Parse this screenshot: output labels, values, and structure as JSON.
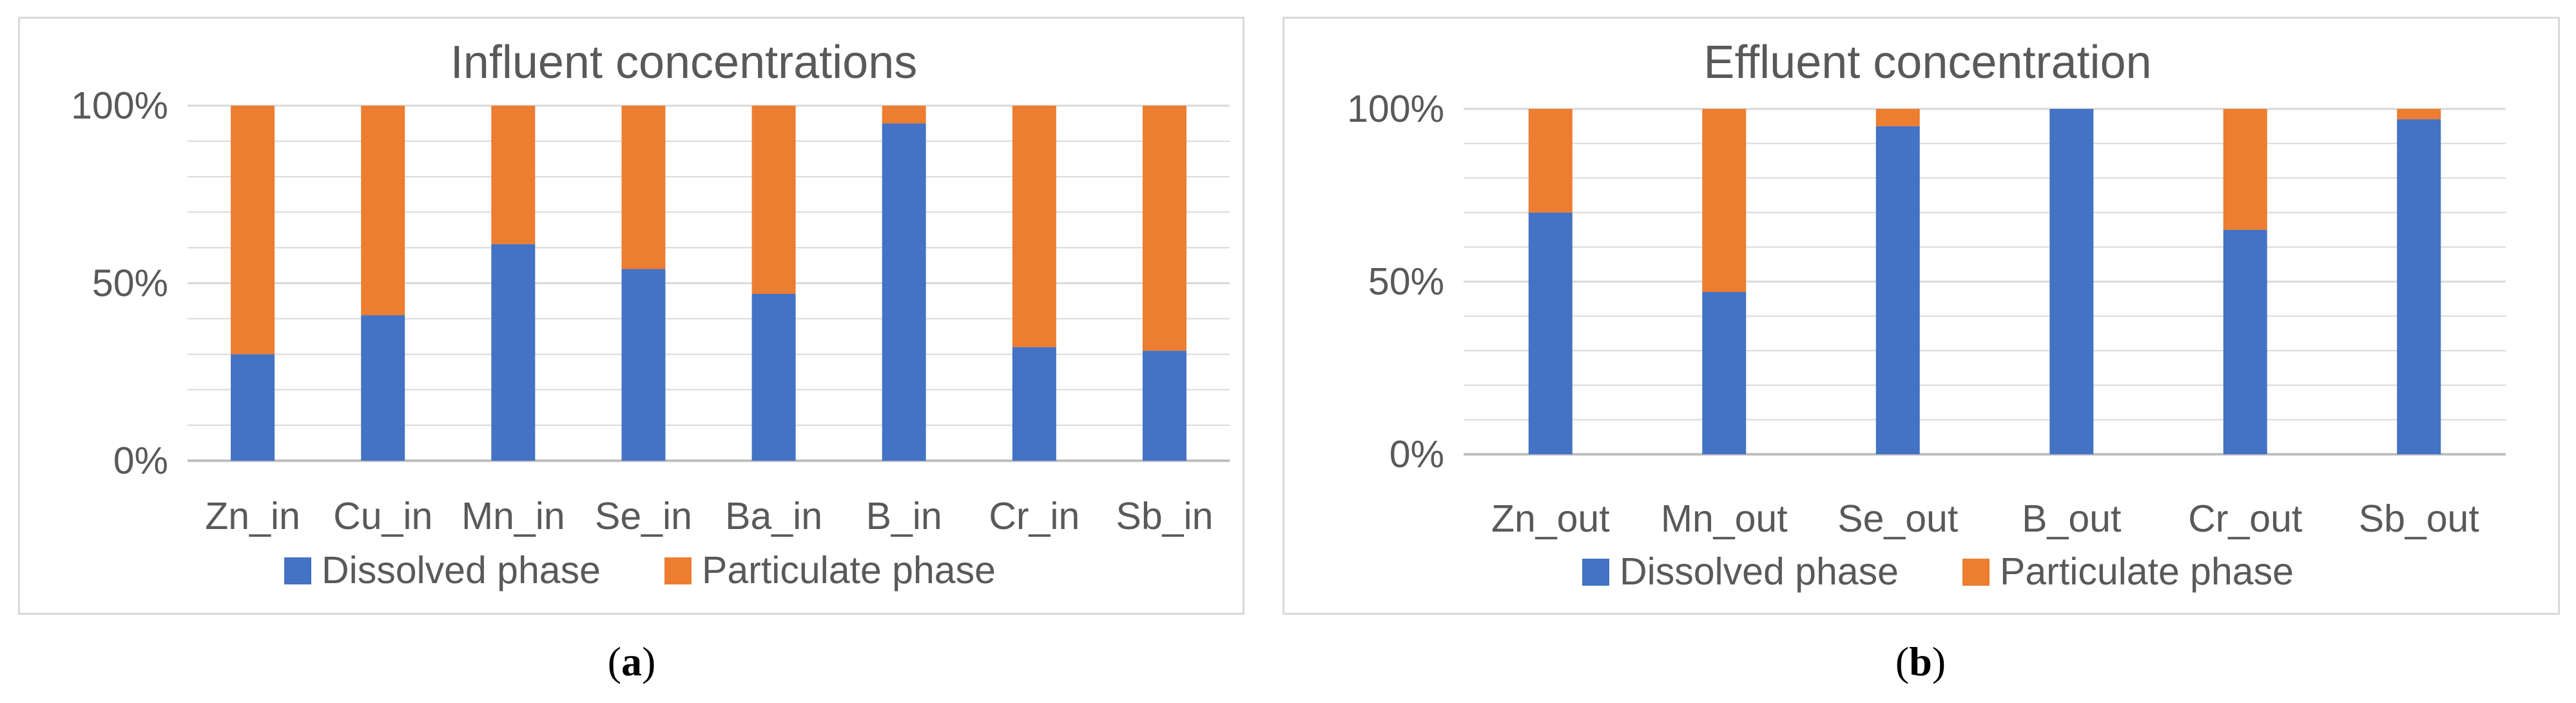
{
  "colors": {
    "dissolved": "#4472c4",
    "particulate": "#ed7d31",
    "gridline": "#d9d9d9",
    "axis": "#bfbfbf",
    "text": "#595959"
  },
  "captions": {
    "a": "a",
    "b": "b"
  },
  "chart_data": [
    {
      "type": "bar",
      "stacked": true,
      "title": "Influent concentrations",
      "categories": [
        "Zn_in",
        "Cu_in",
        "Mn_in",
        "Se_in",
        "Ba_in",
        "B_in",
        "Cr_in",
        "Sb_in"
      ],
      "series": [
        {
          "name": "Dissolved phase",
          "values": [
            30,
            41,
            61,
            54,
            47,
            95,
            32,
            31
          ]
        },
        {
          "name": "Particulate phase",
          "values": [
            70,
            59,
            39,
            46,
            53,
            5,
            68,
            69
          ]
        }
      ],
      "ylim": [
        0,
        100
      ],
      "yticks": [
        "0%",
        "50%",
        "100%"
      ],
      "ytick_values": [
        0,
        50,
        100
      ],
      "minor_gridline_values": [
        10,
        20,
        30,
        40,
        60,
        70,
        80,
        90
      ],
      "legend": {
        "position": "bottom"
      }
    },
    {
      "type": "bar",
      "stacked": true,
      "title": "Effluent concentration",
      "categories": [
        "Zn_out",
        "Mn_out",
        "Se_out",
        "B_out",
        "Cr_out",
        "Sb_out"
      ],
      "series": [
        {
          "name": "Dissolved phase",
          "values": [
            70,
            47,
            95,
            100,
            65,
            97
          ]
        },
        {
          "name": "Particulate phase",
          "values": [
            30,
            53,
            5,
            0,
            35,
            3
          ]
        }
      ],
      "ylim": [
        0,
        100
      ],
      "yticks": [
        "0%",
        "50%",
        "100%"
      ],
      "ytick_values": [
        0,
        50,
        100
      ],
      "minor_gridline_values": [
        10,
        20,
        30,
        40,
        60,
        70,
        80,
        90
      ],
      "legend": {
        "position": "bottom"
      }
    }
  ]
}
